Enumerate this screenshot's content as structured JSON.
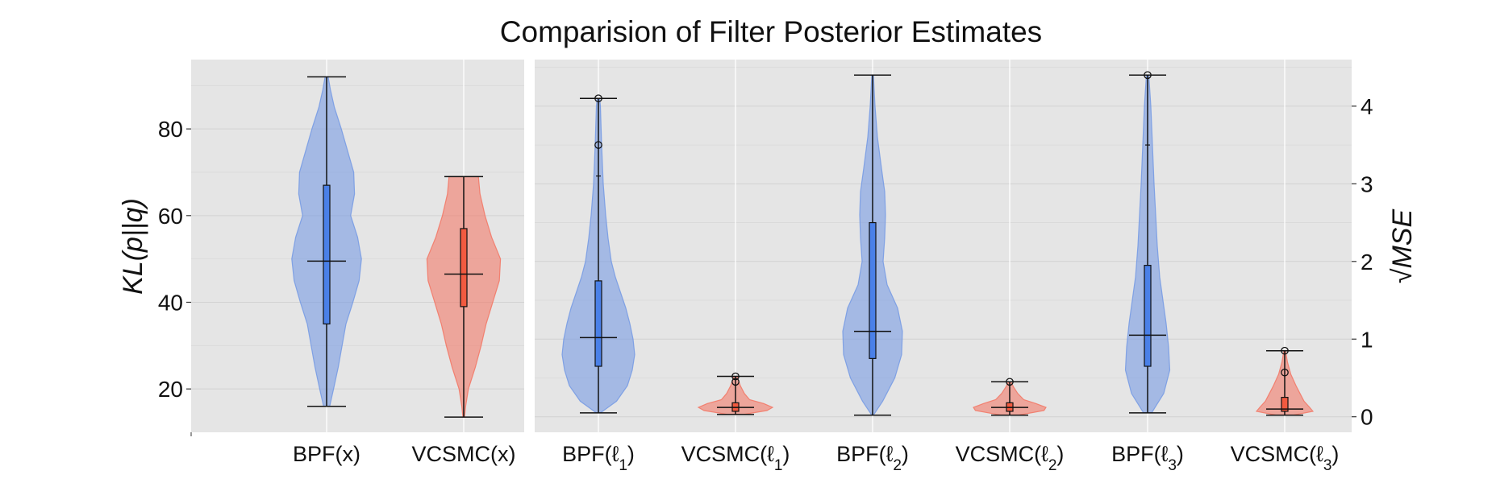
{
  "chart_data": {
    "type": "violin",
    "title": "Comparision of Filter Posterior Estimates",
    "colors": {
      "bpf": "#6f96e4",
      "vcsmc": "#f4715e",
      "bpf_box": "#4a80e8",
      "vcsmc_box": "#f25a40",
      "panel_bg": "#e5e5e5"
    },
    "left_panel": {
      "ylabel": "KL(p||q)",
      "ylim": [
        10,
        96
      ],
      "yticks": [
        20,
        40,
        60,
        80
      ],
      "categories": [
        "BPF(x)",
        "VCSMC(x)"
      ],
      "series": [
        {
          "name": "BPF(x)",
          "group": "bpf",
          "min": 16,
          "q1": 35,
          "median": 49.5,
          "q3": 67,
          "max": 92,
          "outliers": [],
          "profile": [
            [
              16,
              0.08
            ],
            [
              20,
              0.18
            ],
            [
              25,
              0.3
            ],
            [
              30,
              0.4
            ],
            [
              35,
              0.5
            ],
            [
              40,
              0.68
            ],
            [
              45,
              0.84
            ],
            [
              50,
              0.9
            ],
            [
              55,
              0.8
            ],
            [
              60,
              0.62
            ],
            [
              65,
              0.72
            ],
            [
              70,
              0.7
            ],
            [
              75,
              0.54
            ],
            [
              80,
              0.38
            ],
            [
              85,
              0.2
            ],
            [
              89,
              0.1
            ],
            [
              92,
              0.04
            ]
          ]
        },
        {
          "name": "VCSMC(x)",
          "group": "vcsmc",
          "min": 13.5,
          "q1": 39,
          "median": 46.5,
          "q3": 57,
          "max": 69,
          "outliers": [],
          "profile": [
            [
              13.5,
              0.02
            ],
            [
              16,
              0.05
            ],
            [
              20,
              0.12
            ],
            [
              25,
              0.3
            ],
            [
              30,
              0.45
            ],
            [
              35,
              0.58
            ],
            [
              40,
              0.75
            ],
            [
              45,
              0.92
            ],
            [
              50,
              0.95
            ],
            [
              55,
              0.72
            ],
            [
              60,
              0.55
            ],
            [
              65,
              0.42
            ],
            [
              69,
              0.38
            ]
          ]
        }
      ]
    },
    "right_panel": {
      "ylabel": "√MSE",
      "ylim": [
        -0.2,
        4.6
      ],
      "yticks": [
        0,
        1,
        2,
        3,
        4
      ],
      "categories": [
        "BPF(ℓ1)",
        "VCSMC(ℓ1)",
        "BPF(ℓ2)",
        "VCSMC(ℓ2)",
        "BPF(ℓ3)",
        "VCSMC(ℓ3)"
      ],
      "series": [
        {
          "name": "BPF(ℓ1)",
          "group": "bpf",
          "min": 0.05,
          "q1": 0.65,
          "median": 1.02,
          "q3": 1.75,
          "max": 4.1,
          "outliers": [
            4.1,
            3.5
          ],
          "whisker_cap": 3.1,
          "profile": [
            [
              0.05,
              0.05
            ],
            [
              0.2,
              0.45
            ],
            [
              0.4,
              0.72
            ],
            [
              0.6,
              0.84
            ],
            [
              0.8,
              0.9
            ],
            [
              1.0,
              0.86
            ],
            [
              1.2,
              0.78
            ],
            [
              1.4,
              0.68
            ],
            [
              1.6,
              0.55
            ],
            [
              1.8,
              0.42
            ],
            [
              2.0,
              0.32
            ],
            [
              2.3,
              0.24
            ],
            [
              2.6,
              0.18
            ],
            [
              3.0,
              0.12
            ],
            [
              3.5,
              0.08
            ],
            [
              4.0,
              0.05
            ],
            [
              4.1,
              0.03
            ]
          ]
        },
        {
          "name": "VCSMC(ℓ1)",
          "group": "vcsmc",
          "min": 0.03,
          "q1": 0.07,
          "median": 0.12,
          "q3": 0.18,
          "max": 0.52,
          "outliers": [
            0.52,
            0.45
          ],
          "profile": [
            [
              0.03,
              0.2
            ],
            [
              0.08,
              0.78
            ],
            [
              0.12,
              0.92
            ],
            [
              0.17,
              0.7
            ],
            [
              0.22,
              0.35
            ],
            [
              0.3,
              0.22
            ],
            [
              0.4,
              0.12
            ],
            [
              0.52,
              0.04
            ]
          ]
        },
        {
          "name": "BPF(ℓ2)",
          "group": "bpf",
          "min": 0.02,
          "q1": 0.75,
          "median": 1.1,
          "q3": 2.5,
          "max": 4.4,
          "outliers": [],
          "profile": [
            [
              0.02,
              0.02
            ],
            [
              0.2,
              0.25
            ],
            [
              0.5,
              0.55
            ],
            [
              0.8,
              0.72
            ],
            [
              1.1,
              0.74
            ],
            [
              1.4,
              0.62
            ],
            [
              1.7,
              0.36
            ],
            [
              2.0,
              0.26
            ],
            [
              2.3,
              0.3
            ],
            [
              2.6,
              0.32
            ],
            [
              2.9,
              0.3
            ],
            [
              3.2,
              0.22
            ],
            [
              3.6,
              0.12
            ],
            [
              4.0,
              0.06
            ],
            [
              4.4,
              0.02
            ]
          ]
        },
        {
          "name": "VCSMC(ℓ2)",
          "group": "vcsmc",
          "min": 0.02,
          "q1": 0.07,
          "median": 0.12,
          "q3": 0.18,
          "max": 0.45,
          "outliers": [
            0.45
          ],
          "profile": [
            [
              0.02,
              0.2
            ],
            [
              0.08,
              0.85
            ],
            [
              0.12,
              0.9
            ],
            [
              0.17,
              0.65
            ],
            [
              0.22,
              0.35
            ],
            [
              0.3,
              0.2
            ],
            [
              0.38,
              0.1
            ],
            [
              0.45,
              0.03
            ]
          ]
        },
        {
          "name": "BPF(ℓ3)",
          "group": "bpf",
          "min": 0.05,
          "q1": 0.65,
          "median": 1.05,
          "q3": 1.95,
          "max": 4.4,
          "outliers": [
            4.4
          ],
          "whisker_cap": 3.5,
          "profile": [
            [
              0.05,
              0.1
            ],
            [
              0.3,
              0.4
            ],
            [
              0.6,
              0.55
            ],
            [
              0.9,
              0.52
            ],
            [
              1.2,
              0.46
            ],
            [
              1.5,
              0.38
            ],
            [
              1.8,
              0.3
            ],
            [
              2.2,
              0.24
            ],
            [
              2.6,
              0.2
            ],
            [
              3.0,
              0.16
            ],
            [
              3.5,
              0.12
            ],
            [
              4.0,
              0.08
            ],
            [
              4.4,
              0.03
            ]
          ]
        },
        {
          "name": "VCSMC(ℓ3)",
          "group": "vcsmc",
          "min": 0.02,
          "q1": 0.07,
          "median": 0.1,
          "q3": 0.25,
          "max": 0.85,
          "outliers": [
            0.85,
            0.57
          ],
          "profile": [
            [
              0.02,
              0.2
            ],
            [
              0.07,
              0.7
            ],
            [
              0.12,
              0.62
            ],
            [
              0.2,
              0.48
            ],
            [
              0.3,
              0.38
            ],
            [
              0.4,
              0.28
            ],
            [
              0.55,
              0.15
            ],
            [
              0.7,
              0.07
            ],
            [
              0.85,
              0.02
            ]
          ]
        }
      ]
    }
  }
}
